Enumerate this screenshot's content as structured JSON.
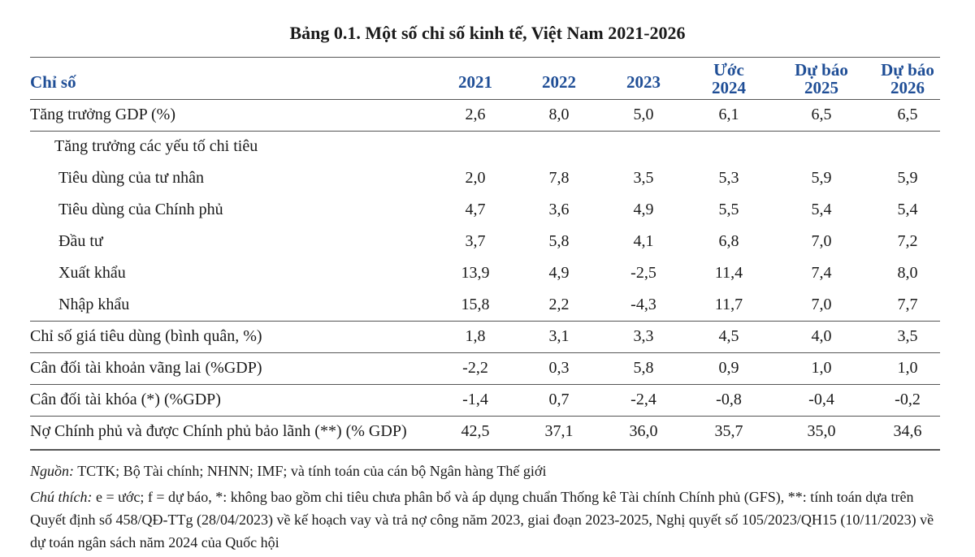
{
  "title": "Bảng 0.1. Một số chỉ số kinh tế, Việt Nam 2021-2026",
  "header": {
    "label": "Chỉ số",
    "columns": [
      [
        "2021"
      ],
      [
        "2022"
      ],
      [
        "2023"
      ],
      [
        "Ước",
        "2024"
      ],
      [
        "Dự báo",
        "2025"
      ],
      [
        "Dự báo",
        "2026"
      ]
    ]
  },
  "rows": [
    {
      "label": "Tăng trưởng GDP (%)",
      "values": [
        "2,6",
        "8,0",
        "5,0",
        "6,1",
        "6,5",
        "6,5"
      ]
    },
    {
      "label": "Tăng trưởng các yếu tố chi tiêu",
      "children": [
        {
          "label": "Tiêu dùng của tư nhân",
          "values": [
            "2,0",
            "7,8",
            "3,5",
            "5,3",
            "5,9",
            "5,9"
          ]
        },
        {
          "label": "Tiêu dùng của Chính phủ",
          "values": [
            "4,7",
            "3,6",
            "4,9",
            "5,5",
            "5,4",
            "5,4"
          ]
        },
        {
          "label": "Đầu tư",
          "values": [
            "3,7",
            "5,8",
            "4,1",
            "6,8",
            "7,0",
            "7,2"
          ]
        },
        {
          "label": "Xuất khẩu",
          "values": [
            "13,9",
            "4,9",
            "-2,5",
            "11,4",
            "7,4",
            "8,0"
          ]
        },
        {
          "label": "Nhập khẩu",
          "values": [
            "15,8",
            "2,2",
            "-4,3",
            "11,7",
            "7,0",
            "7,7"
          ]
        }
      ]
    },
    {
      "label": "Chỉ số giá tiêu dùng (bình quân, %)",
      "values": [
        "1,8",
        "3,1",
        "3,3",
        "4,5",
        "4,0",
        "3,5"
      ]
    },
    {
      "label": "Cân đối tài khoản vãng lai (%GDP)",
      "values": [
        "-2,2",
        "0,3",
        "5,8",
        "0,9",
        "1,0",
        "1,0"
      ]
    },
    {
      "label": "Cân đối tài khóa (*) (%GDP)",
      "values": [
        "-1,4",
        "0,7",
        "-2,4",
        "-0,8",
        "-0,4",
        "-0,2"
      ]
    },
    {
      "label": "Nợ Chính phủ và được Chính phủ bảo lãnh (**) (% GDP)",
      "values": [
        "42,5",
        "37,1",
        "36,0",
        "35,7",
        "35,0",
        "34,6"
      ]
    }
  ],
  "notes": [
    {
      "lead": "Nguồn:",
      "text": "TCTK; Bộ Tài chính; NHNN; IMF; và tính toán của cán bộ Ngân hàng Thế giới"
    },
    {
      "lead": "Chú thích:",
      "text": "e = ước; f = dự báo, *: không bao gồm chi tiêu chưa phân bổ và áp dụng chuẩn Thống kê Tài chính Chính phủ (GFS), **: tính toán dựa trên Quyết định số 458/QĐ-TTg (28/04/2023) về kế hoạch vay và trả nợ công năm 2023, giai đoạn 2023-2025, Nghị quyết số 105/2023/QH15 (10/11/2023) về dự toán ngân sách năm 2024 của Quốc hội"
    }
  ]
}
